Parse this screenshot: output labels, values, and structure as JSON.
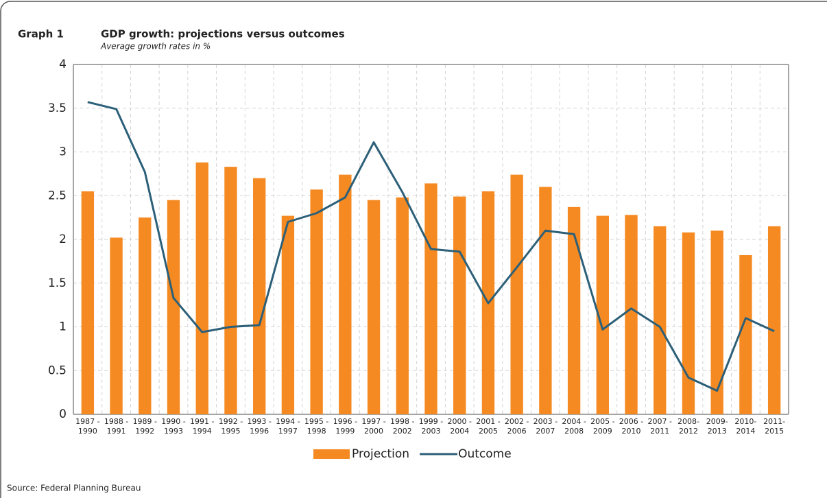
{
  "chart_data": {
    "type": "bar_line",
    "graph_label": "Graph 1",
    "title": "GDP growth: projections versus outcomes",
    "subtitle": "Average growth rates in %",
    "source": "Source: Federal Planning Bureau",
    "categories": [
      [
        "1987 -",
        "1990"
      ],
      [
        "1988 -",
        "1991"
      ],
      [
        "1989 -",
        "1992"
      ],
      [
        "1990 -",
        "1993"
      ],
      [
        "1991 -",
        "1994"
      ],
      [
        "1992 -",
        "1995"
      ],
      [
        "1993 -",
        "1996"
      ],
      [
        "1994 -",
        "1997"
      ],
      [
        "1995 -",
        "1998"
      ],
      [
        "1996 -",
        "1999"
      ],
      [
        "1997 -",
        "2000"
      ],
      [
        "1998 -",
        "2002"
      ],
      [
        "1999 -",
        "2003"
      ],
      [
        "2000 -",
        "2004"
      ],
      [
        "2001 -",
        "2005"
      ],
      [
        "2002 -",
        "2006"
      ],
      [
        "2003 -",
        "2007"
      ],
      [
        "2004 -",
        "2008"
      ],
      [
        "2005 -",
        "2009"
      ],
      [
        "2006 -",
        "2010"
      ],
      [
        "2007 -",
        "2011"
      ],
      [
        "2008-",
        "2012"
      ],
      [
        "2009-",
        "2013"
      ],
      [
        "2010-",
        "2014"
      ],
      [
        "2011-",
        "2015"
      ]
    ],
    "series": [
      {
        "name": "Projection",
        "type": "bar",
        "color": "#f58a22",
        "values": [
          2.55,
          2.02,
          2.25,
          2.45,
          2.88,
          2.83,
          2.7,
          2.27,
          2.57,
          2.74,
          2.45,
          2.48,
          2.64,
          2.49,
          2.55,
          2.74,
          2.6,
          2.37,
          2.27,
          2.28,
          2.15,
          2.08,
          2.1,
          1.82,
          2.15
        ]
      },
      {
        "name": "Outcome",
        "type": "line",
        "color": "#2c5f78",
        "values": [
          3.57,
          3.49,
          2.77,
          1.33,
          0.94,
          1.0,
          1.02,
          2.2,
          2.3,
          2.48,
          3.11,
          2.54,
          1.89,
          1.86,
          1.27,
          1.68,
          2.1,
          2.06,
          0.97,
          1.21,
          1.0,
          0.42,
          0.27,
          1.1,
          0.95
        ]
      }
    ],
    "ylim": [
      0,
      4
    ],
    "yticks": [
      0,
      0.5,
      1,
      1.5,
      2,
      2.5,
      3,
      3.5,
      4
    ],
    "grid": true,
    "legend": "bottom"
  }
}
